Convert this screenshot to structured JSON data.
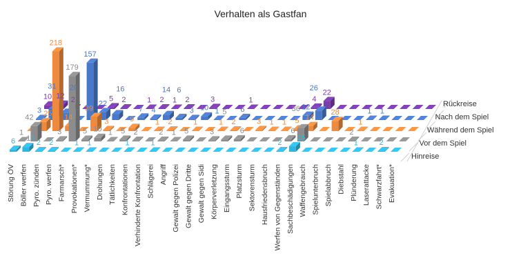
{
  "chart_data": {
    "type": "bar",
    "title": "Verhalten als Gastfan",
    "categories": [
      "Störung ÖV",
      "Böller werfen",
      "Pyro. zünden",
      "Pyro. werfen",
      "Farmarsch*",
      "Provokationen*",
      "Vermummung*",
      "Drohungen",
      "Tätlichkeiten",
      "Konfrontationen",
      "Verhinderte Konfrontation",
      "Schlägerei",
      "Angriff",
      "Gewalt gegen Polizei",
      "Gewalt gegen Dritte",
      "Gewalt gegen Sidi",
      "Körperverletzung",
      "Eingangssturm",
      "Platzsturm",
      "Sektorensturm",
      "Hausfriedensbruch",
      "Werfen von Gegenständen",
      "Sachbeschädigungen",
      "Waffengebrauch",
      "Spielunterbruch",
      "Spielabbruch",
      "Diebstahl",
      "Plünderung",
      "Laserattacke",
      "Schwarzfahrt*",
      "Evakuation*"
    ],
    "series": [
      {
        "name": "Hinreise",
        "color": "#2fb6e0",
        "values": [
          6,
          13,
          2,
          2,
          0,
          1,
          1,
          0,
          0,
          1,
          0,
          1,
          0,
          0,
          0,
          0,
          0,
          0,
          0,
          0,
          0,
          2,
          15,
          0,
          0,
          0,
          0,
          1,
          0,
          2,
          0
        ]
      },
      {
        "name": "Vor dem Spiel",
        "color": "#8c8c8c",
        "values": [
          1,
          42,
          0,
          3,
          179,
          5,
          10,
          1,
          5,
          2,
          0,
          2,
          1,
          5,
          0,
          3,
          5,
          6,
          0,
          0,
          0,
          6,
          36,
          0,
          0,
          0,
          2,
          0,
          0,
          0,
          0
        ]
      },
      {
        "name": "Während dem Spiel",
        "color": "#ed8a3e",
        "values": [
          0,
          25,
          218,
          14,
          0,
          39,
          3,
          0,
          9,
          0,
          1,
          2,
          0,
          1,
          0,
          1,
          2,
          0,
          3,
          1,
          1,
          5,
          14,
          0,
          28,
          0,
          1,
          0,
          0,
          0,
          0
        ]
      },
      {
        "name": "Nach dem Spiel",
        "color": "#4a78c8",
        "values": [
          3,
          31,
          20,
          0,
          157,
          22,
          16,
          0,
          7,
          4,
          14,
          6,
          3,
          10,
          1,
          0,
          6,
          0,
          0,
          0,
          0,
          12,
          26,
          0,
          0,
          0,
          1,
          1,
          0,
          0,
          0
        ]
      },
      {
        "name": "Rückreise",
        "color": "#7a3bab",
        "values": [
          10,
          12,
          2,
          0,
          0,
          5,
          2,
          0,
          1,
          2,
          1,
          2,
          0,
          3,
          0,
          0,
          1,
          0,
          0,
          0,
          0,
          4,
          22,
          0,
          0,
          0,
          0,
          0,
          0,
          0,
          0
        ]
      }
    ],
    "legend_position": "right (depth axis)",
    "grid": false
  }
}
